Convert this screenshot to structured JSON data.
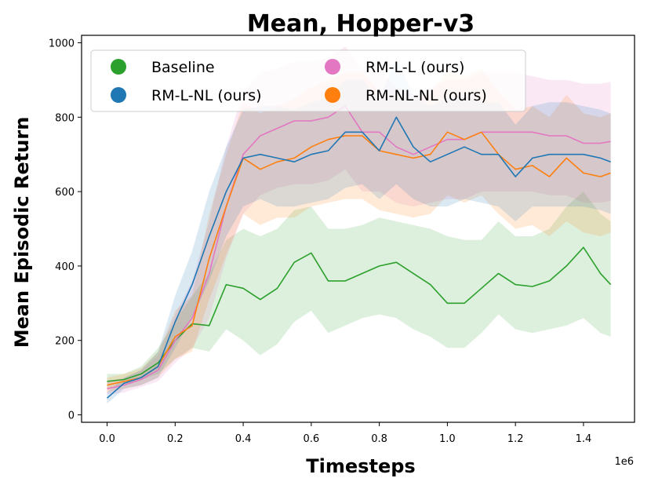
{
  "chart_data": {
    "type": "line",
    "title": "Mean, Hopper-v3",
    "xlabel": "Timesteps",
    "ylabel": "Mean Episodic Return",
    "x_offset_text": "1e6",
    "xlim": [
      -0.075,
      1.55
    ],
    "ylim": [
      -20,
      1020
    ],
    "xticks": [
      0.0,
      0.2,
      0.4,
      0.6,
      0.8,
      1.0,
      1.2,
      1.4
    ],
    "xtick_labels": [
      "0.0",
      "0.2",
      "0.4",
      "0.6",
      "0.8",
      "1.0",
      "1.2",
      "1.4"
    ],
    "yticks": [
      0,
      200,
      400,
      600,
      800,
      1000
    ],
    "ytick_labels": [
      "0",
      "200",
      "400",
      "600",
      "800",
      "1000"
    ],
    "grid": false,
    "legend_position": "top",
    "x": [
      0.0,
      0.05,
      0.1,
      0.15,
      0.2,
      0.25,
      0.3,
      0.35,
      0.4,
      0.45,
      0.5,
      0.55,
      0.6,
      0.65,
      0.7,
      0.75,
      0.8,
      0.85,
      0.9,
      0.95,
      1.0,
      1.05,
      1.1,
      1.15,
      1.2,
      1.25,
      1.3,
      1.35,
      1.4,
      1.45,
      1.48
    ],
    "series": [
      {
        "name": "Baseline",
        "color": "#2ca02c",
        "values": [
          90,
          95,
          110,
          140,
          200,
          245,
          240,
          350,
          340,
          310,
          340,
          410,
          435,
          360,
          360,
          380,
          400,
          410,
          380,
          350,
          300,
          300,
          340,
          380,
          350,
          345,
          360,
          400,
          450,
          380,
          350
        ],
        "lower": [
          70,
          80,
          95,
          110,
          150,
          180,
          170,
          230,
          200,
          160,
          190,
          250,
          280,
          220,
          240,
          260,
          270,
          260,
          230,
          210,
          180,
          180,
          220,
          270,
          230,
          220,
          230,
          240,
          260,
          220,
          210
        ],
        "upper": [
          110,
          110,
          130,
          180,
          250,
          320,
          380,
          470,
          500,
          480,
          500,
          550,
          560,
          500,
          500,
          510,
          530,
          520,
          510,
          500,
          480,
          470,
          470,
          520,
          480,
          480,
          500,
          560,
          600,
          540,
          520
        ]
      },
      {
        "name": "RM-L-NL (ours)",
        "color": "#1f77b4",
        "values": [
          45,
          85,
          100,
          130,
          250,
          350,
          480,
          600,
          690,
          700,
          690,
          680,
          700,
          710,
          760,
          760,
          710,
          800,
          720,
          680,
          700,
          720,
          700,
          700,
          640,
          690,
          700,
          700,
          700,
          690,
          680
        ],
        "lower": [
          30,
          70,
          80,
          100,
          180,
          260,
          360,
          480,
          560,
          580,
          560,
          560,
          570,
          580,
          610,
          620,
          580,
          620,
          580,
          560,
          560,
          580,
          570,
          560,
          520,
          560,
          560,
          560,
          560,
          550,
          540
        ],
        "upper": [
          60,
          100,
          120,
          170,
          320,
          440,
          600,
          720,
          820,
          830,
          830,
          820,
          840,
          850,
          900,
          900,
          850,
          960,
          860,
          830,
          850,
          860,
          840,
          840,
          780,
          830,
          840,
          840,
          830,
          820,
          810
        ]
      },
      {
        "name": "RM-L-L (ours)",
        "color": "#e377c2",
        "values": [
          70,
          80,
          95,
          120,
          200,
          260,
          380,
          560,
          700,
          750,
          770,
          790,
          790,
          800,
          830,
          760,
          760,
          720,
          700,
          720,
          740,
          740,
          760,
          760,
          760,
          760,
          750,
          750,
          730,
          730,
          735
        ],
        "lower": [
          55,
          60,
          75,
          90,
          140,
          180,
          260,
          420,
          540,
          590,
          610,
          620,
          620,
          630,
          660,
          600,
          600,
          570,
          560,
          570,
          580,
          580,
          600,
          600,
          600,
          600,
          590,
          590,
          570,
          570,
          575
        ],
        "upper": [
          90,
          100,
          120,
          160,
          270,
          360,
          520,
          720,
          870,
          920,
          930,
          950,
          950,
          960,
          990,
          930,
          930,
          880,
          860,
          880,
          900,
          900,
          920,
          920,
          920,
          910,
          900,
          900,
          890,
          890,
          895
        ]
      },
      {
        "name": "RM-NL-NL (ours)",
        "color": "#ff7f0e",
        "values": [
          80,
          90,
          100,
          130,
          210,
          240,
          420,
          560,
          690,
          660,
          680,
          690,
          720,
          740,
          750,
          750,
          710,
          700,
          690,
          700,
          760,
          740,
          760,
          700,
          660,
          670,
          640,
          690,
          650,
          640,
          650
        ],
        "lower": [
          60,
          70,
          80,
          100,
          150,
          170,
          310,
          430,
          540,
          510,
          530,
          530,
          560,
          570,
          580,
          580,
          550,
          540,
          530,
          540,
          590,
          570,
          590,
          540,
          500,
          510,
          480,
          520,
          490,
          480,
          490
        ],
        "upper": [
          100,
          110,
          125,
          170,
          280,
          320,
          540,
          700,
          840,
          810,
          830,
          850,
          880,
          900,
          920,
          920,
          870,
          860,
          850,
          860,
          930,
          910,
          930,
          870,
          820,
          830,
          800,
          860,
          810,
          800,
          810
        ]
      }
    ]
  }
}
